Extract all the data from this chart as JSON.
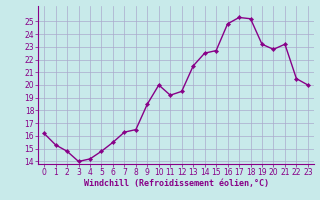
{
  "x": [
    0,
    1,
    2,
    3,
    4,
    5,
    6,
    7,
    8,
    9,
    10,
    11,
    12,
    13,
    14,
    15,
    16,
    17,
    18,
    19,
    20,
    21,
    22,
    23
  ],
  "y": [
    16.2,
    15.3,
    14.8,
    14.0,
    14.2,
    14.8,
    15.5,
    16.3,
    16.5,
    18.5,
    20.0,
    19.2,
    19.5,
    21.5,
    22.5,
    22.7,
    24.8,
    25.3,
    25.2,
    23.2,
    22.8,
    23.2,
    20.5,
    20.0
  ],
  "xlabel": "Windchill (Refroidissement éolien,°C)",
  "line_color": "#880088",
  "marker_color": "#880088",
  "bg_color": "#c8eaea",
  "grid_color": "#aaaacc",
  "axis_color": "#880088",
  "tick_color": "#880088",
  "ylim_min": 14,
  "ylim_max": 26,
  "xlim_min": -0.5,
  "xlim_max": 23.5,
  "yticks": [
    14,
    15,
    16,
    17,
    18,
    19,
    20,
    21,
    22,
    23,
    24,
    25
  ],
  "xticks": [
    0,
    1,
    2,
    3,
    4,
    5,
    6,
    7,
    8,
    9,
    10,
    11,
    12,
    13,
    14,
    15,
    16,
    17,
    18,
    19,
    20,
    21,
    22,
    23
  ],
  "xlabel_fontsize": 6.0,
  "tick_fontsize": 5.5,
  "linewidth": 1.0,
  "markersize": 2.2
}
